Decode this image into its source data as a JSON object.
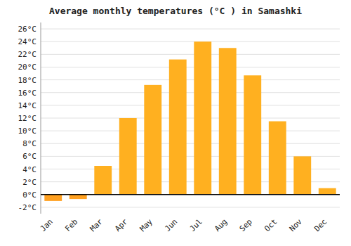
{
  "chart_data": {
    "type": "bar",
    "title": "Average monthly temperatures (°C ) in Samashki",
    "categories": [
      "Jan",
      "Feb",
      "Mar",
      "Apr",
      "May",
      "Jun",
      "Jul",
      "Aug",
      "Sep",
      "Oct",
      "Nov",
      "Dec"
    ],
    "values": [
      -1.0,
      -0.7,
      4.5,
      12.0,
      17.2,
      21.2,
      24.0,
      23.0,
      18.7,
      11.5,
      6.0,
      1.0
    ],
    "colors": [
      "#FFA020",
      "#FFA020",
      "#FFB020",
      "#FFB020",
      "#FFB020",
      "#FFB020",
      "#FFB020",
      "#FFB020",
      "#FFB020",
      "#FFB020",
      "#FFB020",
      "#FFB020"
    ],
    "ylim": [
      -3,
      27
    ],
    "yticks": [
      {
        "value": -2,
        "label": "-2°C"
      },
      {
        "value": 0,
        "label": "0°C"
      },
      {
        "value": 2,
        "label": "2°C"
      },
      {
        "value": 4,
        "label": "4°C"
      },
      {
        "value": 6,
        "label": "6°C"
      },
      {
        "value": 8,
        "label": "8°C"
      },
      {
        "value": 10,
        "label": "10°C"
      },
      {
        "value": 12,
        "label": "12°C"
      },
      {
        "value": 14,
        "label": "14°C"
      },
      {
        "value": 16,
        "label": "16°C"
      },
      {
        "value": 18,
        "label": "18°C"
      },
      {
        "value": 20,
        "label": "20°C"
      },
      {
        "value": 22,
        "label": "22°C"
      },
      {
        "value": 24,
        "label": "24°C"
      },
      {
        "value": 26,
        "label": "26°C"
      }
    ],
    "grid": true
  }
}
